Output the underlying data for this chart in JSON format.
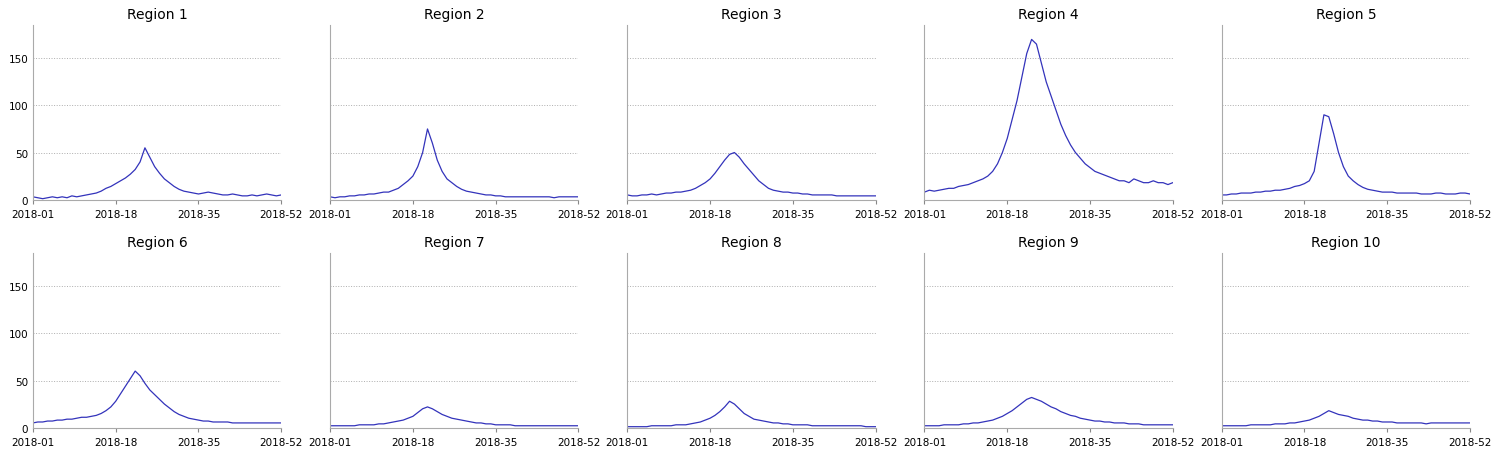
{
  "regions": [
    "Region 1",
    "Region 2",
    "Region 3",
    "Region 4",
    "Region 5",
    "Region 6",
    "Region 7",
    "Region 8",
    "Region 9",
    "Region 10"
  ],
  "line_color": "#3333bb",
  "background_color": "#ffffff",
  "grid_color": "#999999",
  "yticks": [
    0,
    50,
    100,
    150
  ],
  "xtick_labels": [
    "2018-01",
    "2018-18",
    "2018-35",
    "2018-52"
  ],
  "xtick_positions": [
    1,
    18,
    35,
    52
  ],
  "ylim": [
    0,
    185
  ],
  "title_fontsize": 10,
  "tick_fontsize": 7.5,
  "series": {
    "Region 1": [
      3,
      2,
      1,
      2,
      3,
      2,
      3,
      2,
      4,
      3,
      4,
      5,
      6,
      7,
      9,
      12,
      14,
      17,
      20,
      23,
      27,
      32,
      40,
      55,
      45,
      35,
      28,
      22,
      18,
      14,
      11,
      9,
      8,
      7,
      6,
      7,
      8,
      7,
      6,
      5,
      5,
      6,
      5,
      4,
      4,
      5,
      4,
      5,
      6,
      5,
      4,
      5
    ],
    "Region 2": [
      3,
      2,
      3,
      3,
      4,
      4,
      5,
      5,
      6,
      6,
      7,
      8,
      8,
      10,
      12,
      16,
      20,
      25,
      35,
      50,
      75,
      60,
      42,
      30,
      22,
      18,
      14,
      11,
      9,
      8,
      7,
      6,
      5,
      5,
      4,
      4,
      3,
      3,
      3,
      3,
      3,
      3,
      3,
      3,
      3,
      3,
      2,
      3,
      3,
      3,
      3,
      3
    ],
    "Region 3": [
      5,
      4,
      4,
      5,
      5,
      6,
      5,
      6,
      7,
      7,
      8,
      8,
      9,
      10,
      12,
      15,
      18,
      22,
      28,
      35,
      42,
      48,
      50,
      45,
      38,
      32,
      26,
      20,
      16,
      12,
      10,
      9,
      8,
      8,
      7,
      7,
      6,
      6,
      5,
      5,
      5,
      5,
      5,
      4,
      4,
      4,
      4,
      4,
      4,
      4,
      4,
      4
    ],
    "Region 4": [
      8,
      10,
      9,
      10,
      11,
      12,
      12,
      14,
      15,
      16,
      18,
      20,
      22,
      25,
      30,
      38,
      50,
      65,
      85,
      105,
      130,
      155,
      170,
      165,
      145,
      125,
      110,
      95,
      80,
      68,
      58,
      50,
      44,
      38,
      34,
      30,
      28,
      26,
      24,
      22,
      20,
      20,
      18,
      22,
      20,
      18,
      18,
      20,
      18,
      18,
      16,
      18
    ],
    "Region 5": [
      5,
      5,
      6,
      6,
      7,
      7,
      7,
      8,
      8,
      9,
      9,
      10,
      10,
      11,
      12,
      14,
      15,
      17,
      20,
      30,
      60,
      90,
      88,
      70,
      50,
      35,
      25,
      20,
      16,
      13,
      11,
      10,
      9,
      8,
      8,
      8,
      7,
      7,
      7,
      7,
      7,
      6,
      6,
      6,
      7,
      7,
      6,
      6,
      6,
      7,
      7,
      6
    ],
    "Region 6": [
      5,
      6,
      6,
      7,
      7,
      8,
      8,
      9,
      9,
      10,
      11,
      11,
      12,
      13,
      15,
      18,
      22,
      28,
      36,
      44,
      52,
      60,
      55,
      47,
      40,
      35,
      30,
      25,
      21,
      17,
      14,
      12,
      10,
      9,
      8,
      7,
      7,
      6,
      6,
      6,
      6,
      5,
      5,
      5,
      5,
      5,
      5,
      5,
      5,
      5,
      5,
      5
    ],
    "Region 7": [
      2,
      2,
      2,
      2,
      2,
      2,
      3,
      3,
      3,
      3,
      4,
      4,
      5,
      6,
      7,
      8,
      10,
      12,
      16,
      20,
      22,
      20,
      17,
      14,
      12,
      10,
      9,
      8,
      7,
      6,
      5,
      5,
      4,
      4,
      3,
      3,
      3,
      3,
      2,
      2,
      2,
      2,
      2,
      2,
      2,
      2,
      2,
      2,
      2,
      2,
      2,
      2
    ],
    "Region 8": [
      1,
      1,
      1,
      1,
      1,
      2,
      2,
      2,
      2,
      2,
      3,
      3,
      3,
      4,
      5,
      6,
      8,
      10,
      13,
      17,
      22,
      28,
      25,
      20,
      15,
      12,
      9,
      8,
      7,
      6,
      5,
      5,
      4,
      4,
      3,
      3,
      3,
      3,
      2,
      2,
      2,
      2,
      2,
      2,
      2,
      2,
      2,
      2,
      2,
      1,
      1,
      1
    ],
    "Region 9": [
      2,
      2,
      2,
      2,
      3,
      3,
      3,
      3,
      4,
      4,
      5,
      5,
      6,
      7,
      8,
      10,
      12,
      15,
      18,
      22,
      26,
      30,
      32,
      30,
      28,
      25,
      22,
      20,
      17,
      15,
      13,
      12,
      10,
      9,
      8,
      7,
      7,
      6,
      6,
      5,
      5,
      5,
      4,
      4,
      4,
      3,
      3,
      3,
      3,
      3,
      3,
      3
    ],
    "Region 10": [
      2,
      2,
      2,
      2,
      2,
      2,
      3,
      3,
      3,
      3,
      3,
      4,
      4,
      4,
      5,
      5,
      6,
      7,
      8,
      10,
      12,
      15,
      18,
      16,
      14,
      13,
      12,
      10,
      9,
      8,
      8,
      7,
      7,
      6,
      6,
      6,
      5,
      5,
      5,
      5,
      5,
      5,
      4,
      5,
      5,
      5,
      5,
      5,
      5,
      5,
      5,
      5
    ]
  }
}
